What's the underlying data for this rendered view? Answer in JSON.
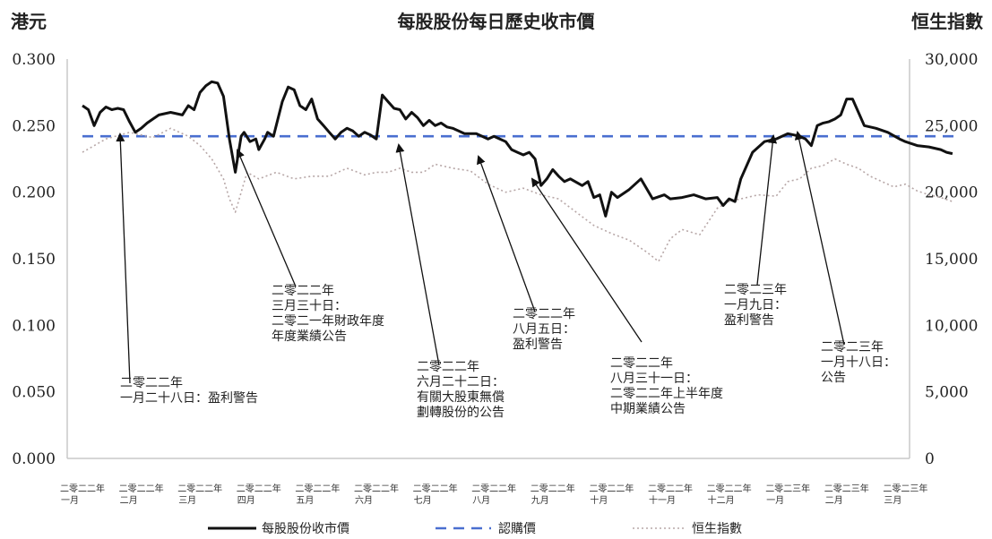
{
  "header": {
    "left_unit": "港元",
    "title": "每股股份每日歷史收市價",
    "right_unit": "恒生指數"
  },
  "chart_data": {
    "type": "line",
    "title": "每股股份每日歷史收市價",
    "ylabel_left": "港元",
    "ylabel_right": "恒生指數",
    "y_left_ticks": [
      "0.000",
      "0.050",
      "0.100",
      "0.150",
      "0.200",
      "0.250",
      "0.300"
    ],
    "y_right_ticks": [
      "0",
      "5,000",
      "10,000",
      "15,000",
      "20,000",
      "25,000",
      "30,000"
    ],
    "ylim_left": [
      0,
      0.3
    ],
    "ylim_right": [
      0,
      30000
    ],
    "x_ticks": [
      {
        "l1": "二零二二年",
        "l2": "一月"
      },
      {
        "l1": "二零二二年",
        "l2": "二月"
      },
      {
        "l1": "二零二二年",
        "l2": "三月"
      },
      {
        "l1": "二零二二年",
        "l2": "四月"
      },
      {
        "l1": "二零二二年",
        "l2": "五月"
      },
      {
        "l1": "二零二二年",
        "l2": "六月"
      },
      {
        "l1": "二零二二年",
        "l2": "七月"
      },
      {
        "l1": "二零二二年",
        "l2": "八月"
      },
      {
        "l1": "二零二二年",
        "l2": "九月"
      },
      {
        "l1": "二零二二年",
        "l2": "十月"
      },
      {
        "l1": "二零二二年",
        "l2": "十一月"
      },
      {
        "l1": "二零二二年",
        "l2": "十二月"
      },
      {
        "l1": "二零二三年",
        "l2": "一月"
      },
      {
        "l1": "二零二三年",
        "l2": "二月"
      },
      {
        "l1": "二零二三年",
        "l2": "三月"
      }
    ],
    "series": [
      {
        "name": "每股股份收市價",
        "axis": "left",
        "color": "#111111",
        "x": [
          0,
          0.1,
          0.2,
          0.3,
          0.4,
          0.5,
          0.6,
          0.7,
          0.8,
          0.9,
          1.0,
          1.1,
          1.2,
          1.3,
          1.5,
          1.7,
          1.8,
          1.9,
          2.0,
          2.1,
          2.2,
          2.3,
          2.4,
          2.5,
          2.6,
          2.7,
          2.75,
          2.85,
          2.95,
          3.0,
          3.1,
          3.15,
          3.25,
          3.4,
          3.5,
          3.6,
          3.7,
          3.8,
          3.9,
          4.0,
          4.1,
          4.2,
          4.3,
          4.4,
          4.5,
          4.6,
          4.7,
          4.8,
          4.9,
          5.0,
          5.1,
          5.2,
          5.3,
          5.4,
          5.5,
          5.6,
          5.7,
          5.8,
          5.9,
          6.0,
          6.1,
          6.2,
          6.3,
          6.5,
          6.7,
          6.9,
          7.0,
          7.1,
          7.2,
          7.3,
          7.4,
          7.5,
          7.6,
          7.7,
          7.8,
          7.9,
          8.0,
          8.1,
          8.2,
          8.3,
          8.5,
          8.6,
          8.7,
          8.8,
          8.9,
          9.0,
          9.1,
          9.3,
          9.5,
          9.7,
          9.9,
          10.0,
          10.2,
          10.4,
          10.6,
          10.8,
          10.9,
          11.0,
          11.1,
          11.2,
          11.4,
          11.6,
          11.8,
          12.0,
          12.1,
          12.2,
          12.3,
          12.4,
          12.5,
          12.6,
          12.7,
          12.8,
          12.9,
          13.0,
          13.1,
          13.3,
          13.5,
          13.7,
          13.9,
          14.0,
          14.2,
          14.4,
          14.6,
          14.7,
          14.8
        ],
        "values": [
          0.265,
          0.262,
          0.25,
          0.26,
          0.264,
          0.262,
          0.263,
          0.262,
          0.253,
          0.245,
          0.248,
          0.252,
          0.255,
          0.258,
          0.26,
          0.258,
          0.265,
          0.262,
          0.275,
          0.28,
          0.283,
          0.282,
          0.272,
          0.24,
          0.215,
          0.242,
          0.245,
          0.238,
          0.24,
          0.232,
          0.24,
          0.245,
          0.242,
          0.268,
          0.279,
          0.277,
          0.265,
          0.262,
          0.27,
          0.255,
          0.25,
          0.245,
          0.24,
          0.245,
          0.248,
          0.246,
          0.242,
          0.245,
          0.243,
          0.24,
          0.273,
          0.268,
          0.263,
          0.262,
          0.255,
          0.26,
          0.256,
          0.25,
          0.254,
          0.25,
          0.252,
          0.249,
          0.248,
          0.244,
          0.244,
          0.24,
          0.242,
          0.24,
          0.238,
          0.232,
          0.23,
          0.228,
          0.23,
          0.225,
          0.205,
          0.21,
          0.217,
          0.212,
          0.208,
          0.21,
          0.205,
          0.208,
          0.196,
          0.198,
          0.182,
          0.2,
          0.196,
          0.202,
          0.21,
          0.195,
          0.198,
          0.195,
          0.196,
          0.198,
          0.195,
          0.196,
          0.19,
          0.195,
          0.193,
          0.21,
          0.23,
          0.238,
          0.24,
          0.244,
          0.243,
          0.242,
          0.24,
          0.235,
          0.25,
          0.252,
          0.253,
          0.255,
          0.258,
          0.27,
          0.27,
          0.25,
          0.248,
          0.245,
          0.24,
          0.238,
          0.235,
          0.234,
          0.232,
          0.23,
          0.229
        ],
        "stroke_width": 3,
        "dash": ""
      },
      {
        "name": "認購價",
        "axis": "left",
        "color": "#4a6fd0",
        "x": [
          0,
          14.9
        ],
        "values": [
          0.242,
          0.242
        ],
        "stroke_width": 2.6,
        "dash": "12,8"
      },
      {
        "name": "恒生指數",
        "axis": "right",
        "color": "#b7a7a7",
        "x": [
          0,
          0.4,
          0.8,
          1.0,
          1.2,
          1.5,
          1.8,
          2.0,
          2.2,
          2.4,
          2.5,
          2.6,
          2.8,
          3.0,
          3.3,
          3.6,
          3.9,
          4.2,
          4.5,
          4.8,
          5.0,
          5.2,
          5.4,
          5.6,
          5.8,
          6.0,
          6.3,
          6.6,
          6.9,
          7.2,
          7.5,
          7.8,
          8.1,
          8.4,
          8.7,
          9.0,
          9.3,
          9.6,
          9.8,
          10.0,
          10.2,
          10.5,
          10.8,
          11.0,
          11.2,
          11.5,
          11.8,
          12.0,
          12.2,
          12.4,
          12.6,
          12.8,
          13.0,
          13.2,
          13.4,
          13.6,
          13.8,
          14.0,
          14.2,
          14.4,
          14.6,
          14.8
        ],
        "values": [
          23000,
          24000,
          24500,
          24300,
          24100,
          24800,
          24200,
          23500,
          22500,
          21000,
          19500,
          18500,
          21500,
          21000,
          21500,
          21000,
          21200,
          21200,
          21800,
          21300,
          21500,
          21500,
          21800,
          21500,
          21500,
          22100,
          21800,
          21600,
          20600,
          20000,
          20300,
          19800,
          19500,
          18500,
          17500,
          16900,
          16400,
          15500,
          14800,
          16500,
          17200,
          16800,
          18800,
          19300,
          19500,
          19800,
          19700,
          20800,
          21000,
          21800,
          22000,
          22500,
          22100,
          21800,
          21200,
          20800,
          20400,
          20600,
          20100,
          19800,
          19600,
          19300
        ],
        "stroke_width": 1.6,
        "dash": "2,3"
      }
    ],
    "annotations": [
      {
        "lines": [
          "二零二二年",
          "一月二十八日：盈利警告"
        ]
      },
      {
        "lines": [
          "二零二二年",
          "三月三十日：",
          "二零二一年財政年度",
          "年度業績公告"
        ]
      },
      {
        "lines": [
          "二零二二年",
          "六月二十二日：",
          "有關大股東無償",
          "劃轉股份的公告"
        ]
      },
      {
        "lines": [
          "二零二二年",
          "八月五日：",
          "盈利警告"
        ]
      },
      {
        "lines": [
          "二零二二年",
          "八月三十一日：",
          "二零二二年上半年度",
          "中期業績公告"
        ]
      },
      {
        "lines": [
          "二零二三年",
          "一月九日：",
          "盈利警告"
        ]
      },
      {
        "lines": [
          "二零二三年",
          "一月十八日：",
          "公告"
        ]
      }
    ],
    "legend": [
      {
        "label": "每股股份收市價"
      },
      {
        "label": "認購價"
      },
      {
        "label": "恒生指數"
      }
    ],
    "legend_position": "bottom",
    "grid": false
  }
}
